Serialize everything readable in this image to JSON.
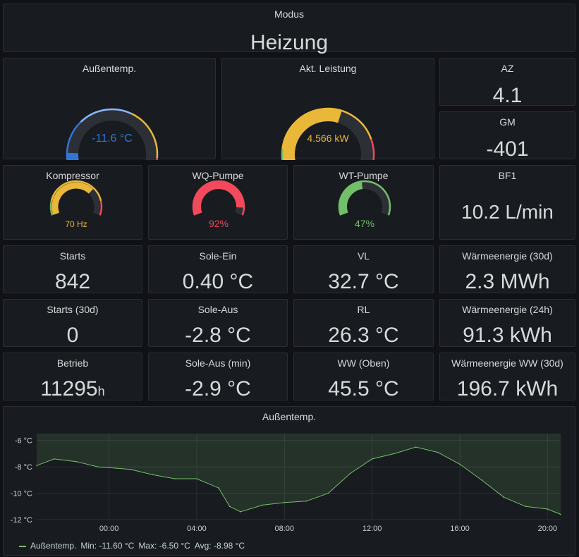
{
  "modus": {
    "title": "Modus",
    "value": "Heizung"
  },
  "gauges": {
    "aussentemp": {
      "title": "Außentemp.",
      "text": "-11.6 °C",
      "fraction": 0.1,
      "color": "#3274d9"
    },
    "leistung": {
      "title": "Akt. Leistung",
      "text": "4.566 kW",
      "fraction": 0.58,
      "color": "#eab839"
    },
    "kompressor": {
      "title": "Kompressor",
      "text": "70 Hz",
      "fraction": 0.7,
      "color": "#eab839"
    },
    "wq_pumpe": {
      "title": "WQ-Pumpe",
      "text": "92%",
      "fraction": 0.92,
      "color": "#f2495c"
    },
    "wt_pumpe": {
      "title": "WT-Pumpe",
      "text": "47%",
      "fraction": 0.47,
      "color": "#73bf69"
    }
  },
  "stats": {
    "az": {
      "title": "AZ",
      "value": "4.1"
    },
    "gm": {
      "title": "GM",
      "value": "-401"
    },
    "bf1": {
      "title": "BF1",
      "value": "10.2 L/min"
    },
    "starts": {
      "title": "Starts",
      "value": "842"
    },
    "sole_ein": {
      "title": "Sole-Ein",
      "value": "0.40 °C"
    },
    "vl": {
      "title": "VL",
      "value": "32.7 °C"
    },
    "waerme30": {
      "title": "Wärmeenergie (30d)",
      "value": "2.3 MWh"
    },
    "starts30": {
      "title": "Starts (30d)",
      "value": "0"
    },
    "sole_aus": {
      "title": "Sole-Aus",
      "value": "-2.8 °C"
    },
    "rl": {
      "title": "RL",
      "value": "26.3 °C"
    },
    "waerme24": {
      "title": "Wärmeenergie (24h)",
      "value": "91.3 kWh"
    },
    "betrieb": {
      "title": "Betrieb",
      "value": "11295",
      "unit": "h"
    },
    "sole_aus_min": {
      "title": "Sole-Aus (min)",
      "value": "-2.9 °C"
    },
    "ww_oben": {
      "title": "WW (Oben)",
      "value": "45.5 °C"
    },
    "waerme_ww30": {
      "title": "Wärmeenergie WW (30d)",
      "value": "196.7 kWh"
    }
  },
  "chart": {
    "title": "Außentemp.",
    "legend": {
      "name": "Außentemp.",
      "min": "Min: -11.60 °C",
      "max": "Max: -6.50 °C",
      "avg": "Avg: -8.98 °C"
    }
  },
  "chart_data": {
    "type": "area",
    "title": "Außentemp.",
    "x_ticks": [
      "00:00",
      "04:00",
      "08:00",
      "12:00",
      "16:00",
      "20:00"
    ],
    "y_ticks": [
      "-6 °C",
      "-8 °C",
      "-10 °C",
      "-12 °C"
    ],
    "ylim": [
      -12,
      -5.8
    ],
    "xlim_hours": [
      -3.3,
      20.6
    ],
    "series": [
      {
        "name": "Außentemp.",
        "color": "#73bf69",
        "x_hours": [
          -3.3,
          -2.5,
          -1.5,
          -0.5,
          0.3,
          1.0,
          2.0,
          3.0,
          4.0,
          5.0,
          5.5,
          6.0,
          7.0,
          8.0,
          9.0,
          10.0,
          11.0,
          12.0,
          13.0,
          14.0,
          15.0,
          16.0,
          17.0,
          18.0,
          19.0,
          20.0,
          20.6
        ],
        "values": [
          -7.9,
          -7.4,
          -7.6,
          -8.0,
          -8.1,
          -8.2,
          -8.6,
          -8.9,
          -8.9,
          -9.6,
          -11.0,
          -11.4,
          -10.9,
          -10.7,
          -10.6,
          -10.0,
          -8.5,
          -7.4,
          -7.0,
          -6.5,
          -6.9,
          -7.8,
          -9.0,
          -10.3,
          -11.0,
          -11.2,
          -11.6
        ]
      }
    ]
  }
}
